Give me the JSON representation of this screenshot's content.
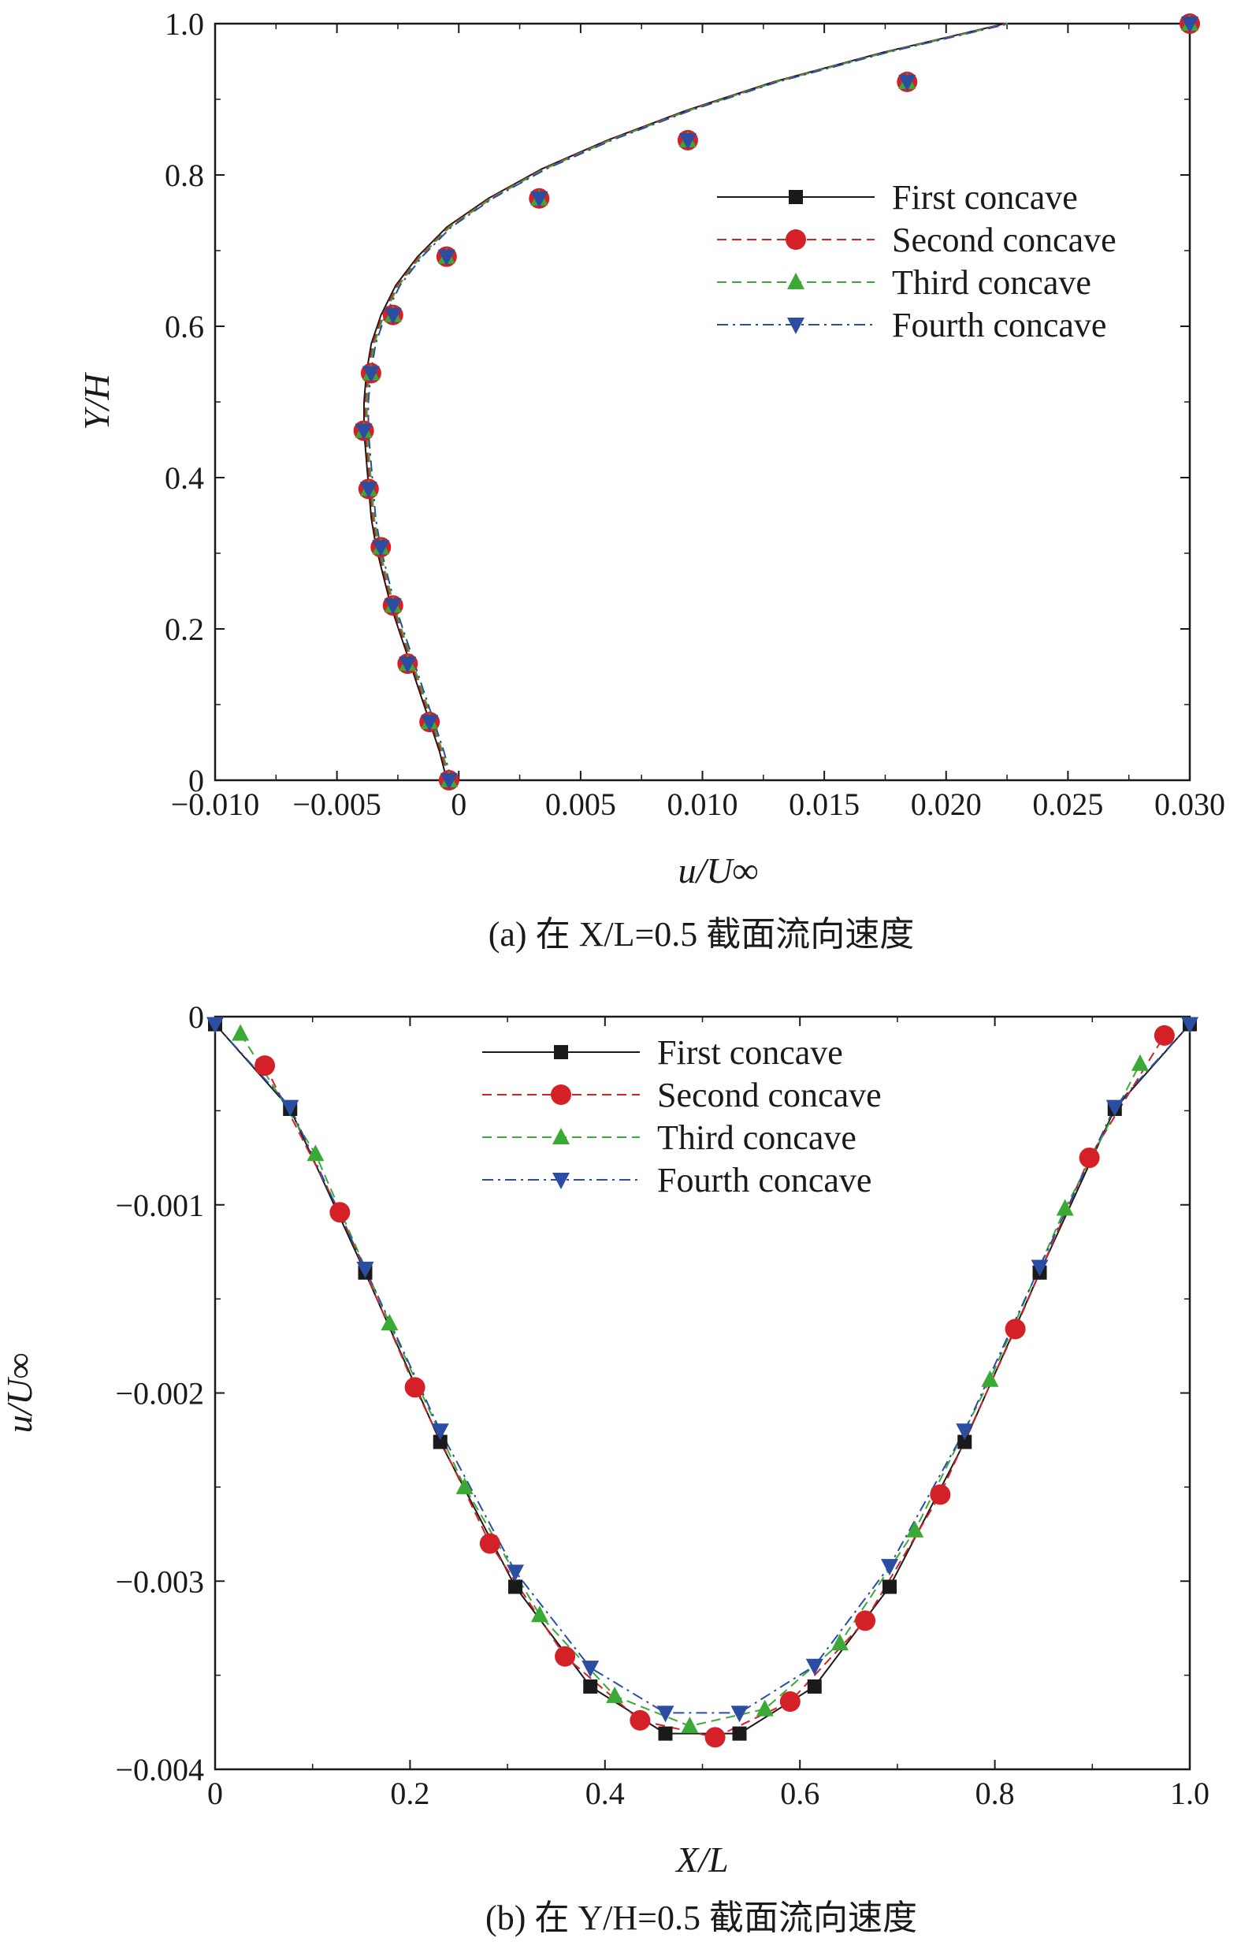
{
  "chart_data": [
    {
      "panel": "a",
      "type": "line",
      "caption": "(a) 在 X/L=0.5 截面流向速度",
      "xlabel": "u/U∞",
      "ylabel": "Y/H",
      "xlim": [
        -0.01,
        0.03
      ],
      "ylim": [
        0,
        1.0
      ],
      "xticks": [
        -0.01,
        -0.005,
        0,
        0.005,
        0.01,
        0.015,
        0.02,
        0.025,
        0.03
      ],
      "xtick_labels": [
        "−0.010",
        "−0.005",
        "0",
        "0.005",
        "0.010",
        "0.015",
        "0.020",
        "0.025",
        "0.030"
      ],
      "yticks": [
        0,
        0.2,
        0.4,
        0.6,
        0.8,
        1.0
      ],
      "ytick_labels": [
        "0",
        "0.2",
        "0.4",
        "0.6",
        "0.8",
        "1.0"
      ],
      "legend_position": "right",
      "curve": {
        "x": [
          -0.0004,
          -0.0007,
          -0.0011,
          -0.0015,
          -0.0019,
          -0.0023,
          -0.0027,
          -0.003,
          -0.0033,
          -0.0035,
          -0.0036,
          -0.0037,
          -0.0038,
          -0.0038,
          -0.0037,
          -0.0035,
          -0.0031,
          -0.0025,
          -0.0016,
          -0.0004,
          0.0013,
          0.0035,
          0.0062,
          0.0094,
          0.013,
          0.0175,
          0.0225,
          0.03
        ],
        "y": [
          0.0,
          0.038,
          0.077,
          0.115,
          0.154,
          0.192,
          0.231,
          0.269,
          0.308,
          0.346,
          0.385,
          0.423,
          0.462,
          0.5,
          0.538,
          0.577,
          0.615,
          0.654,
          0.692,
          0.731,
          0.769,
          0.808,
          0.846,
          0.885,
          0.923,
          0.962,
          1.0,
          1.0
        ]
      },
      "marker_points": {
        "x": [
          -0.0004,
          -0.0012,
          -0.0021,
          -0.0027,
          -0.0032,
          -0.0037,
          -0.0039,
          -0.0036,
          -0.0027,
          -0.0005,
          0.0033,
          0.0094,
          0.0184,
          0.03
        ],
        "y": [
          0.0,
          0.077,
          0.154,
          0.231,
          0.308,
          0.385,
          0.462,
          0.538,
          0.615,
          0.692,
          0.769,
          0.846,
          0.923,
          1.0
        ]
      },
      "series": [
        {
          "name": "First concave",
          "color": "#1a1a1a",
          "marker": "square",
          "line": "solid"
        },
        {
          "name": "Second concave",
          "color": "#d42027",
          "marker": "circle",
          "line": "dashed"
        },
        {
          "name": "Third concave",
          "color": "#3aa935",
          "marker": "triangle-up",
          "line": "dashed"
        },
        {
          "name": "Fourth concave",
          "color": "#2b4ea2",
          "marker": "triangle-down",
          "line": "dashdot"
        }
      ]
    },
    {
      "panel": "b",
      "type": "line",
      "caption": "(b) 在 Y/H=0.5 截面流向速度",
      "xlabel": "X/L",
      "ylabel": "u/U∞",
      "xlim": [
        0,
        1.0
      ],
      "ylim": [
        -0.004,
        0
      ],
      "xticks": [
        0,
        0.2,
        0.4,
        0.6,
        0.8,
        1.0
      ],
      "xtick_labels": [
        "0",
        "0.2",
        "0.4",
        "0.6",
        "0.8",
        "1.0"
      ],
      "yticks": [
        0,
        -0.001,
        -0.002,
        -0.003,
        -0.004
      ],
      "ytick_labels": [
        "0",
        "−0.001",
        "−0.002",
        "−0.003",
        "−0.004"
      ],
      "legend_position": "top-center",
      "series": [
        {
          "name": "First concave",
          "color": "#1a1a1a",
          "marker": "square",
          "line": "solid",
          "x": [
            0,
            0.077,
            0.154,
            0.231,
            0.308,
            0.385,
            0.462,
            0.538,
            0.615,
            0.692,
            0.769,
            0.846,
            0.923,
            1.0
          ],
          "y": [
            -4e-05,
            -0.00049,
            -0.00136,
            -0.00226,
            -0.00303,
            -0.00356,
            -0.00381,
            -0.00381,
            -0.00356,
            -0.00303,
            -0.00226,
            -0.00136,
            -0.00049,
            -4e-05
          ]
        },
        {
          "name": "Second concave",
          "color": "#d42027",
          "marker": "circle",
          "line": "dashed",
          "x": [
            0.051,
            0.128,
            0.205,
            0.282,
            0.359,
            0.436,
            0.513,
            0.59,
            0.667,
            0.744,
            0.821,
            0.897,
            0.974
          ],
          "y": [
            -0.00026,
            -0.00104,
            -0.00197,
            -0.0028,
            -0.0034,
            -0.00374,
            -0.00383,
            -0.00364,
            -0.00321,
            -0.00254,
            -0.00166,
            -0.00075,
            -0.0001
          ]
        },
        {
          "name": "Third concave",
          "color": "#3aa935",
          "marker": "triangle-up",
          "line": "dashed",
          "x": [
            0.026,
            0.103,
            0.179,
            0.256,
            0.333,
            0.41,
            0.487,
            0.564,
            0.641,
            0.718,
            0.795,
            0.872,
            0.949
          ],
          "y": [
            -9e-05,
            -0.00073,
            -0.00163,
            -0.0025,
            -0.00318,
            -0.00361,
            -0.00377,
            -0.00368,
            -0.00333,
            -0.00273,
            -0.00193,
            -0.00102,
            -0.00025
          ]
        },
        {
          "name": "Fourth concave",
          "color": "#2b4ea2",
          "marker": "triangle-down",
          "line": "dashdot",
          "x": [
            0,
            0.077,
            0.154,
            0.231,
            0.308,
            0.385,
            0.462,
            0.538,
            0.615,
            0.692,
            0.769,
            0.846,
            0.923,
            1.0
          ],
          "y": [
            -4e-05,
            -0.00048,
            -0.00134,
            -0.0022,
            -0.00295,
            -0.00346,
            -0.0037,
            -0.0037,
            -0.00345,
            -0.00292,
            -0.0022,
            -0.00133,
            -0.00048,
            -4e-05
          ]
        }
      ]
    }
  ]
}
